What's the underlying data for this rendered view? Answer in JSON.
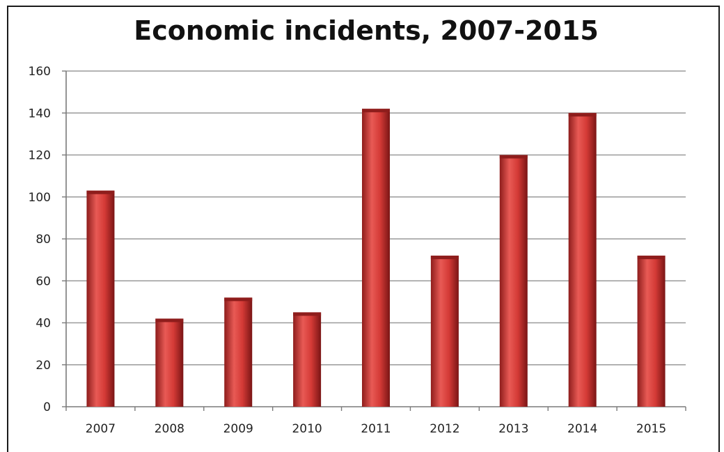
{
  "chart_data": {
    "type": "bar",
    "title": "Economic incidents, 2007-2015",
    "xlabel": "",
    "ylabel": "",
    "categories": [
      "2007",
      "2008",
      "2009",
      "2010",
      "2011",
      "2012",
      "2013",
      "2014",
      "2015"
    ],
    "values": [
      103,
      42,
      52,
      45,
      142,
      72,
      120,
      140,
      72
    ],
    "ylim": [
      0,
      160
    ],
    "yticks": [
      "0",
      "20",
      "40",
      "60",
      "80",
      "100",
      "120",
      "140",
      "160"
    ],
    "grid": true,
    "legend": "none",
    "colors": {
      "bar": "#c8302f",
      "bar_light": "#e85a55",
      "bar_dark": "#8e1d1c",
      "grid": "#9a9a9a"
    }
  }
}
